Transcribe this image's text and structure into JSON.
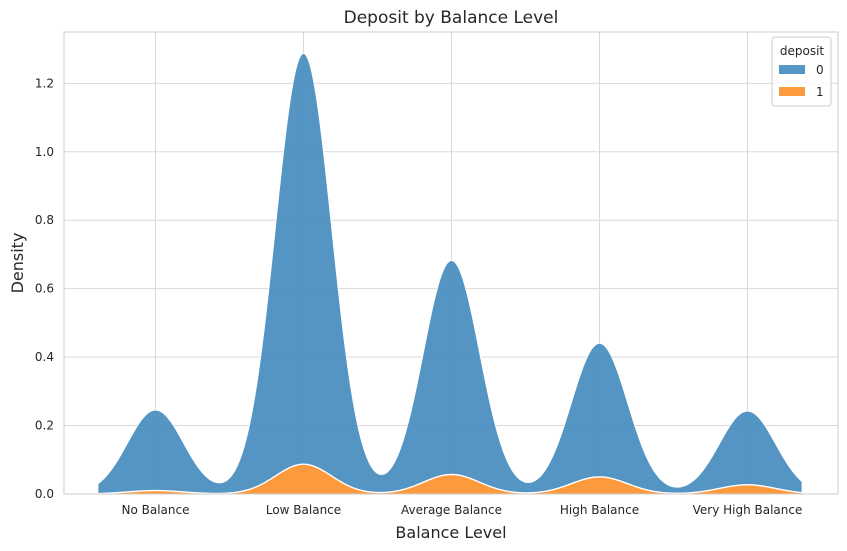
{
  "chart_data": {
    "type": "area",
    "subtype": "stacked kde density",
    "title": "Deposit by Balance Level",
    "xlabel": "Balance Level",
    "ylabel": "Density",
    "categories": [
      "No Balance",
      "Low Balance",
      "Average Balance",
      "High Balance",
      "Very High Balance"
    ],
    "ylim": [
      0,
      1.35
    ],
    "yticks": [
      "0.0",
      "0.2",
      "0.4",
      "0.6",
      "0.8",
      "1.0",
      "1.2"
    ],
    "grid": true,
    "legend": {
      "title": "deposit",
      "placement": "top-right"
    },
    "series": [
      {
        "name": "0",
        "color": "#4c8fc0",
        "peaks": [
          0.235,
          1.2,
          0.625,
          0.39,
          0.215
        ]
      },
      {
        "name": "1",
        "color": "#fe9a3e",
        "peaks": [
          0.01,
          0.087,
          0.057,
          0.05,
          0.027
        ]
      }
    ]
  }
}
